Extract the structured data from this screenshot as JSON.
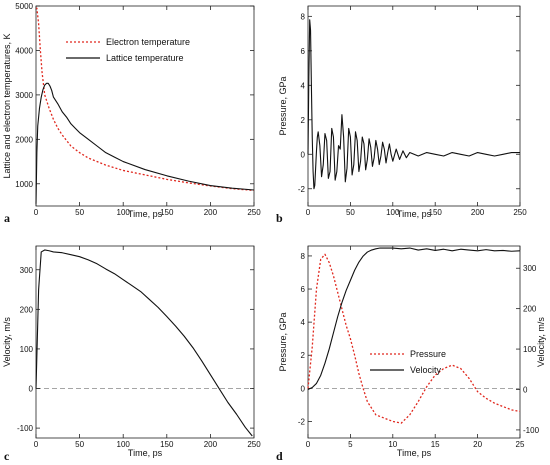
{
  "chart_data": [
    {
      "panel": "a",
      "type": "line",
      "xlabel": "Time, ps",
      "ylabel": "Lattice and electron temperatures, K",
      "xlim": [
        0,
        250
      ],
      "ylim": [
        500,
        5000
      ],
      "xticks": [
        0,
        50,
        100,
        150,
        200,
        250
      ],
      "yticks": [
        1000,
        2000,
        3000,
        4000,
        5000
      ],
      "grid": false,
      "legend": "top-center",
      "series": [
        {
          "name": "Electron temperature",
          "color": "#e0281e",
          "style": "dotted",
          "x": [
            0,
            1,
            3,
            5,
            7,
            10,
            15,
            20,
            25,
            30,
            40,
            50,
            60,
            80,
            100,
            125,
            150,
            175,
            200,
            225,
            250
          ],
          "y": [
            4950,
            4950,
            4600,
            4000,
            3500,
            3000,
            2700,
            2450,
            2250,
            2100,
            1850,
            1700,
            1580,
            1420,
            1300,
            1200,
            1100,
            1020,
            950,
            890,
            850
          ]
        },
        {
          "name": "Lattice temperature",
          "color": "#111111",
          "style": "solid",
          "x": [
            0,
            1,
            2,
            4,
            6,
            8,
            10,
            12,
            14,
            16,
            18,
            20,
            25,
            30,
            35,
            40,
            45,
            50,
            60,
            70,
            80,
            90,
            100,
            125,
            150,
            175,
            200,
            225,
            250
          ],
          "y": [
            550,
            1700,
            2300,
            2700,
            2950,
            3120,
            3220,
            3260,
            3260,
            3200,
            3100,
            2950,
            2800,
            2620,
            2500,
            2350,
            2250,
            2150,
            2000,
            1850,
            1700,
            1600,
            1500,
            1320,
            1180,
            1060,
            960,
            900,
            860
          ]
        }
      ]
    },
    {
      "panel": "b",
      "type": "line",
      "xlabel": "Time, ps",
      "ylabel": "Pressure, GPa",
      "xlim": [
        0,
        250
      ],
      "ylim": [
        -3,
        8.6
      ],
      "xticks": [
        0,
        50,
        100,
        150,
        200,
        250
      ],
      "yticks": [
        -2,
        0,
        2,
        4,
        6,
        8
      ],
      "grid": false,
      "series": [
        {
          "color": "#111111",
          "x": [
            0,
            1,
            2,
            3,
            4,
            5,
            6,
            7,
            8,
            9,
            10,
            11,
            12,
            14,
            16,
            18,
            20,
            22,
            24,
            26,
            28,
            30,
            32,
            34,
            36,
            38,
            40,
            42,
            44,
            46,
            48,
            50,
            52,
            54,
            56,
            58,
            60,
            62,
            64,
            66,
            68,
            70,
            72,
            74,
            76,
            78,
            80,
            82,
            84,
            86,
            88,
            90,
            92,
            94,
            96,
            98,
            100,
            104,
            108,
            112,
            116,
            120,
            130,
            140,
            150,
            160,
            170,
            180,
            190,
            200,
            210,
            220,
            230,
            240,
            250
          ],
          "y": [
            0,
            4.5,
            7.8,
            7.2,
            4.0,
            1.0,
            -1.0,
            -2.0,
            -1.8,
            -0.8,
            0.2,
            1.0,
            1.3,
            0.5,
            -1.3,
            -0.6,
            1.2,
            0.8,
            -1.4,
            -1.0,
            1.5,
            1.0,
            -1.5,
            -1.0,
            0.5,
            0.3,
            2.3,
            1.0,
            -1.6,
            -0.8,
            1.5,
            1.0,
            -1.2,
            -0.6,
            1.3,
            0.8,
            -1.0,
            -0.4,
            1.0,
            0.6,
            -0.9,
            -0.3,
            0.9,
            0.4,
            -0.7,
            -0.2,
            0.8,
            0.3,
            -0.6,
            -0.1,
            0.7,
            0.3,
            -0.5,
            0.1,
            0.6,
            0.0,
            -0.4,
            0.3,
            -0.3,
            0.2,
            -0.2,
            0.1,
            -0.1,
            0.1,
            0.0,
            -0.1,
            0.1,
            0.0,
            -0.1,
            0.1,
            0.0,
            -0.1,
            0.0,
            0.1,
            0.1
          ]
        }
      ]
    },
    {
      "panel": "c",
      "type": "line",
      "xlabel": "Time, ps",
      "ylabel": "Velocity, m/s",
      "xlim": [
        0,
        250
      ],
      "ylim": [
        -125,
        360
      ],
      "xticks": [
        0,
        50,
        100,
        150,
        200,
        250
      ],
      "yticks": [
        -100,
        0,
        100,
        200,
        300
      ],
      "grid": false,
      "reference_line": {
        "y": 0,
        "style": "dashed"
      },
      "series": [
        {
          "color": "#111111",
          "x": [
            0,
            3,
            6,
            10,
            15,
            20,
            30,
            40,
            50,
            60,
            70,
            80,
            90,
            100,
            110,
            120,
            130,
            140,
            150,
            160,
            170,
            180,
            190,
            200,
            210,
            220,
            230,
            240,
            248
          ],
          "y": [
            0,
            250,
            345,
            350,
            348,
            345,
            343,
            338,
            333,
            325,
            315,
            302,
            290,
            275,
            260,
            245,
            225,
            205,
            182,
            158,
            132,
            103,
            70,
            35,
            0,
            -35,
            -65,
            -98,
            -120
          ]
        }
      ]
    },
    {
      "panel": "d",
      "type": "line",
      "xlabel": "Time, ps",
      "ylabel": "Pressure, GPa",
      "ylabel_right": "Velocity, m/s",
      "xlim": [
        0,
        25
      ],
      "ylim": [
        -3,
        8.6
      ],
      "ylim_right": [
        -120,
        355
      ],
      "xticks": [
        0,
        5,
        10,
        15,
        20,
        25
      ],
      "yticks": [
        -2,
        0,
        2,
        4,
        6,
        8
      ],
      "yticks_right": [
        -100,
        0,
        100,
        200,
        300
      ],
      "grid": false,
      "legend": "center",
      "reference_line": {
        "y": 0,
        "style": "dashed"
      },
      "series": [
        {
          "name": "Pressure",
          "color": "#e0281e",
          "style": "dotted",
          "axis": "left",
          "x": [
            0,
            0.5,
            1,
            1.5,
            2,
            2.5,
            3,
            3.5,
            4,
            4.5,
            5,
            5.5,
            6,
            6.5,
            7,
            7.5,
            8,
            9,
            10,
            11,
            12,
            13,
            14,
            15,
            16,
            17,
            18,
            19,
            20,
            21,
            22,
            23,
            24,
            25
          ],
          "y": [
            0,
            2.5,
            6.0,
            7.8,
            8.1,
            7.6,
            6.8,
            5.8,
            4.8,
            3.8,
            3.0,
            2.0,
            0.9,
            0.0,
            -0.8,
            -1.2,
            -1.6,
            -1.8,
            -2.0,
            -2.1,
            -1.6,
            -0.8,
            0.1,
            0.8,
            1.2,
            1.4,
            1.2,
            0.6,
            -0.2,
            -0.6,
            -0.9,
            -1.1,
            -1.3,
            -1.4
          ]
        },
        {
          "name": "Velocity",
          "color": "#111111",
          "style": "solid",
          "axis": "right",
          "x": [
            0,
            0.5,
            1,
            1.5,
            2,
            2.5,
            3,
            3.5,
            4,
            4.5,
            5,
            5.5,
            6,
            6.5,
            7,
            7.5,
            8,
            8.5,
            9,
            10,
            11,
            12,
            13,
            14,
            15,
            16,
            17,
            18,
            19,
            20,
            21,
            22,
            23,
            24,
            25
          ],
          "y": [
            0,
            5,
            15,
            35,
            65,
            100,
            140,
            180,
            215,
            245,
            270,
            295,
            315,
            330,
            340,
            345,
            348,
            350,
            350,
            350,
            348,
            350,
            345,
            348,
            344,
            347,
            343,
            347,
            345,
            343,
            346,
            343,
            344,
            342,
            343
          ]
        }
      ]
    }
  ]
}
